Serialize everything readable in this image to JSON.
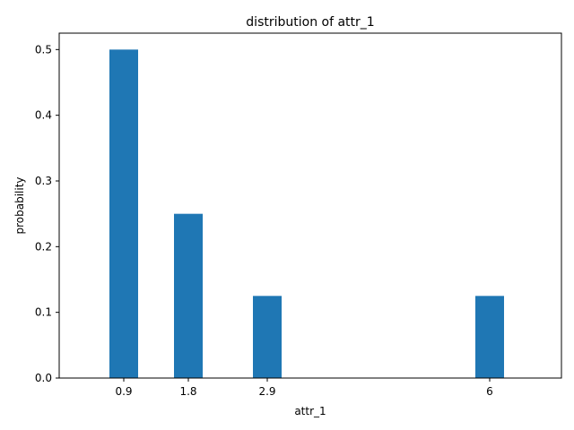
{
  "chart_data": {
    "type": "bar",
    "title": "distribution of attr_1",
    "xlabel": "attr_1",
    "ylabel": "probability",
    "x": [
      0.9,
      1.8,
      2.9,
      6
    ],
    "x_tick_labels": [
      "0.9",
      "1.8",
      "2.9",
      "6"
    ],
    "values": [
      0.5,
      0.25,
      0.125,
      0.125
    ],
    "xlim": [
      0.0,
      7.0
    ],
    "ylim": [
      0.0,
      0.525
    ],
    "y_ticks": [
      0.0,
      0.1,
      0.2,
      0.3,
      0.4,
      0.5
    ],
    "y_tick_labels": [
      "0.0",
      "0.1",
      "0.2",
      "0.3",
      "0.4",
      "0.5"
    ],
    "bar_color": "#1f77b4",
    "grid": false,
    "legend": "none"
  }
}
